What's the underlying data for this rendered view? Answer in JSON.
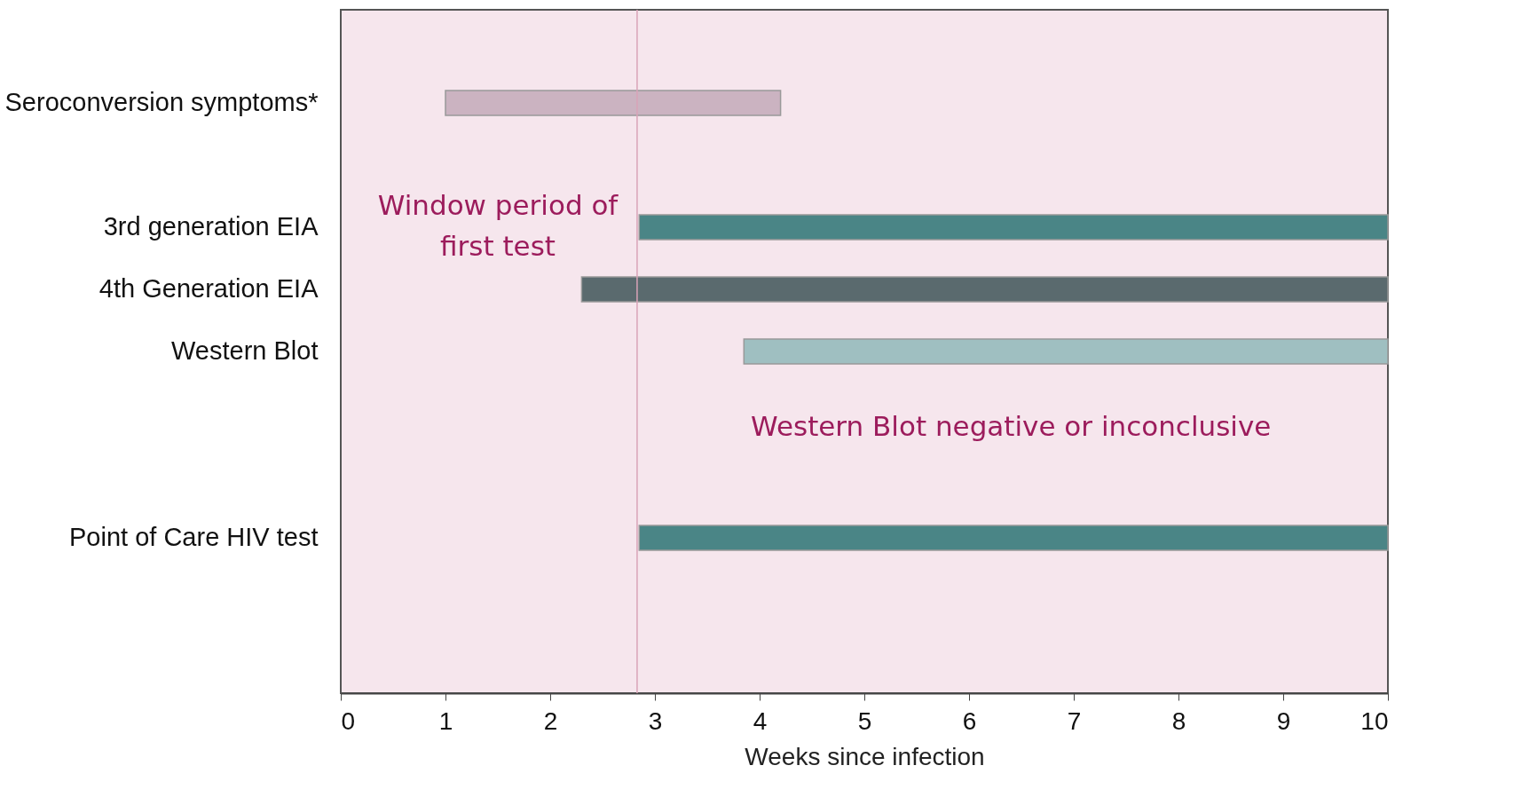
{
  "chart_data": {
    "type": "bar",
    "orientation": "horizontal",
    "xlabel": "Weeks since infection",
    "categories": [
      null,
      "Seroconversion symptoms*",
      null,
      "3rd generation EIA",
      "4th Generation EIA",
      "Western Blot",
      null,
      null,
      "Point of Care HIV test",
      null,
      null
    ],
    "base": [
      null,
      1.0,
      null,
      2.85,
      2.3,
      3.85,
      null,
      null,
      2.85,
      null,
      null
    ],
    "values": [
      null,
      3.2,
      null,
      7.15,
      7.7,
      6.15,
      null,
      null,
      7.15,
      null,
      null
    ],
    "colors": [
      "#4a8586",
      "#cbb3c1",
      "#4a8586",
      "#4a8586",
      "#5a6a6e",
      "#9fbfc1",
      "#4a8586",
      "#4a8586",
      "#4a8586",
      "#4a8586",
      "#4a8586"
    ],
    "xlim": [
      0,
      10
    ],
    "xticks": [
      0,
      1,
      2,
      3,
      4,
      5,
      6,
      7,
      8,
      9,
      10
    ],
    "ref_lines": [
      {
        "axis": "x",
        "value": 2.83,
        "color": "#d9a3b8"
      }
    ],
    "annotations": [
      "Window period of first test",
      "Western Blot negative or inconclusive"
    ]
  }
}
